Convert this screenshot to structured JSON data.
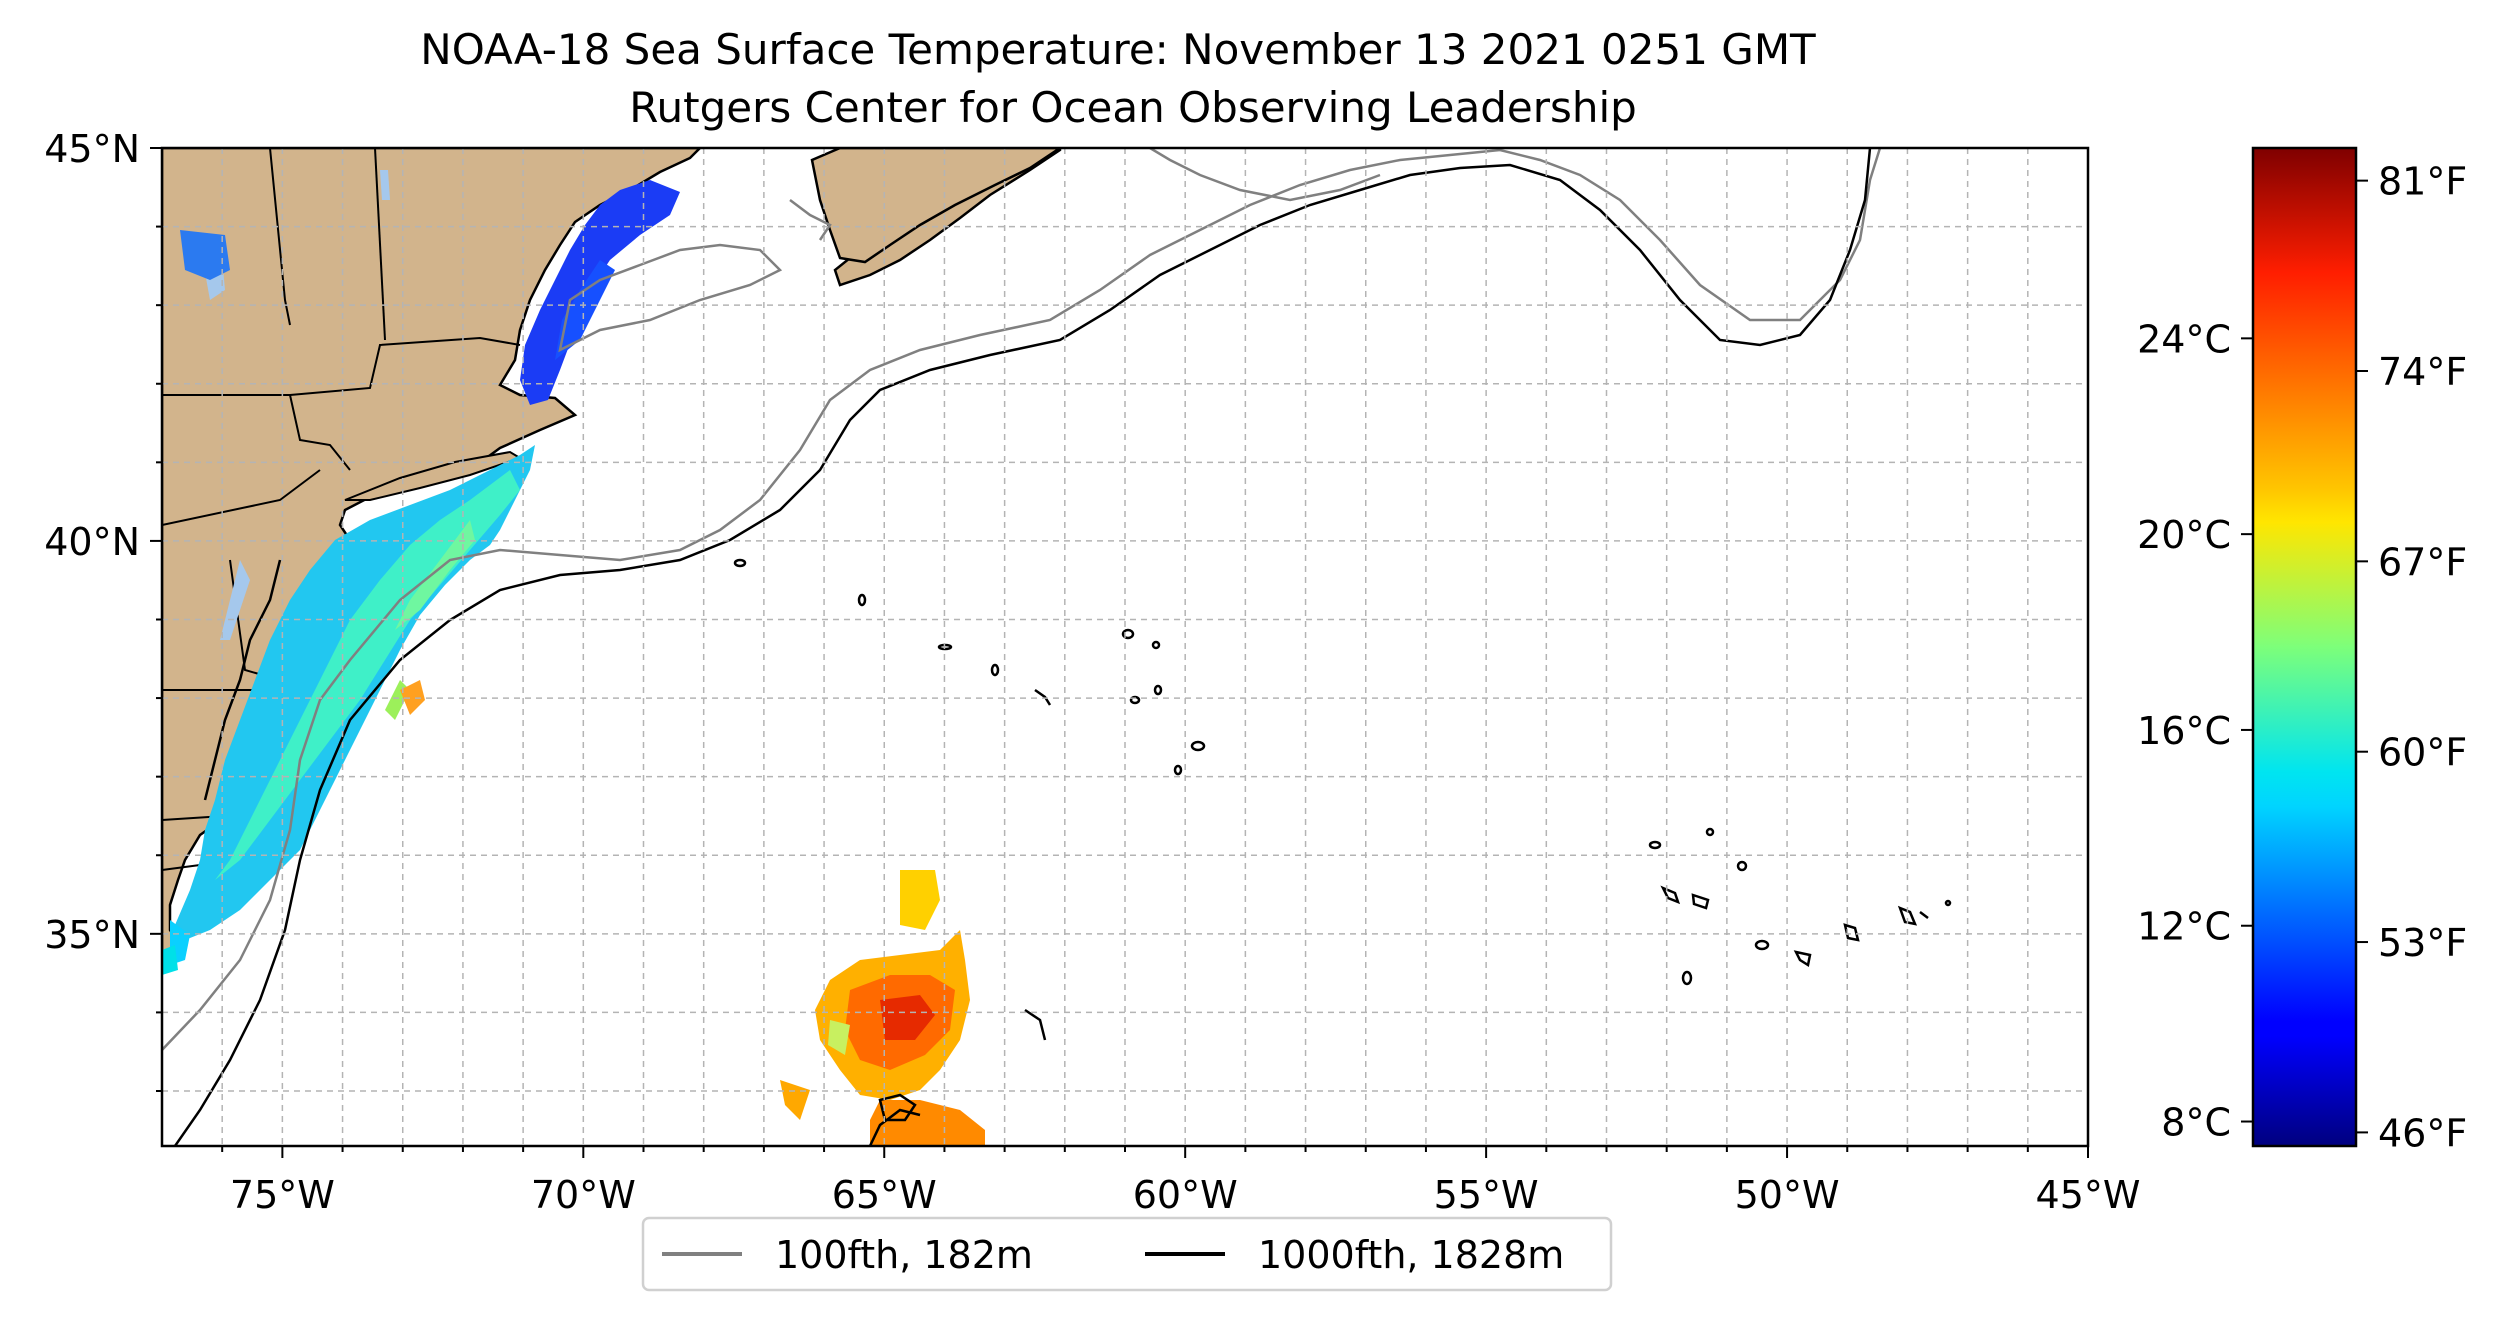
{
  "title": {
    "line1": "NOAA-18 Sea Surface Temperature: November 13 2021 0251 GMT",
    "line2": "Rutgers Center for Ocean Observing Leadership"
  },
  "map": {
    "lon_range": [
      -77,
      -45
    ],
    "lat_range": [
      32.3,
      45
    ],
    "lon_ticks": [
      "75°W",
      "70°W",
      "65°W",
      "60°W",
      "55°W",
      "50°W",
      "45°W"
    ],
    "lat_ticks": [
      "35°N",
      "40°N",
      "45°N"
    ],
    "grid": true,
    "land_color": "#d2b48c"
  },
  "legend": {
    "placement": "bottom-center",
    "items": [
      {
        "label": "100fth, 182m",
        "color": "#808080"
      },
      {
        "label": "1000fth, 1828m",
        "color": "#000000"
      }
    ]
  },
  "colorbar": {
    "colormap": "jet",
    "celsius_ticks": [
      "24°C",
      "20°C",
      "16°C",
      "12°C",
      "8°C"
    ],
    "fahrenheit_ticks": [
      "81°F",
      "74°F",
      "67°F",
      "60°F",
      "53°F",
      "46°F"
    ]
  }
}
